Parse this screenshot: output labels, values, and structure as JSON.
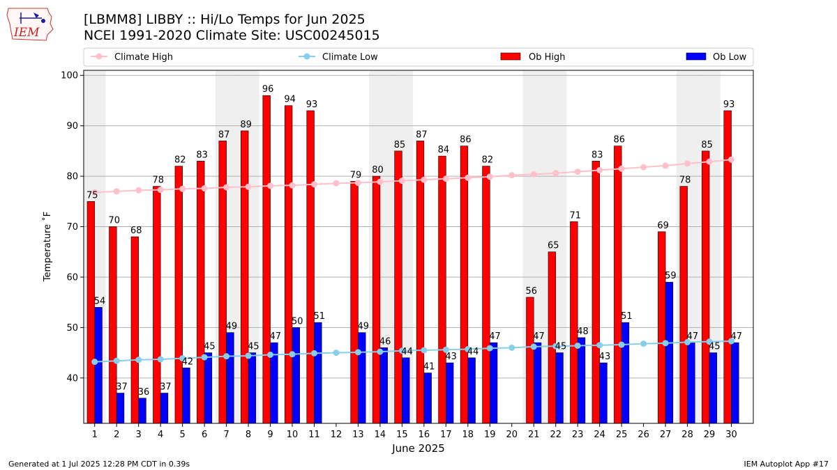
{
  "header": {
    "title_line1": "[LBMM8] LIBBY :: Hi/Lo Temps for Jun 2025",
    "title_line2": "NCEI 1991-2020 Climate Site: USC00245015",
    "logo_text": "IEM"
  },
  "footer": {
    "generated": "Generated at 1 Jul 2025 12:28 PM CDT in 0.39s",
    "app": "IEM Autoplot App #17"
  },
  "colors": {
    "ob_high": "#ff0000",
    "ob_low": "#0000ff",
    "climate_high": "#ffc0cb",
    "climate_low": "#87ceeb",
    "weekend_band": "#efefef",
    "grid": "#b0b0b0"
  },
  "chart_data": {
    "type": "bar",
    "xlabel": "June 2025",
    "ylabel": "Temperature ˚F",
    "ylim": [
      31,
      101
    ],
    "yticks": [
      40,
      50,
      60,
      70,
      80,
      90,
      100
    ],
    "grid": "horizontal",
    "legend_placement": "top",
    "categories": [
      "1",
      "2",
      "3",
      "4",
      "5",
      "6",
      "7",
      "8",
      "9",
      "10",
      "11",
      "12",
      "13",
      "14",
      "15",
      "16",
      "17",
      "18",
      "19",
      "20",
      "21",
      "22",
      "23",
      "24",
      "25",
      "26",
      "27",
      "28",
      "29",
      "30"
    ],
    "weekend_days": [
      1,
      7,
      8,
      14,
      15,
      21,
      22,
      28,
      29
    ],
    "series": [
      {
        "name": "Ob High",
        "kind": "bar",
        "values": [
          75,
          70,
          68,
          78,
          82,
          83,
          87,
          89,
          96,
          94,
          93,
          null,
          79,
          80,
          85,
          87,
          84,
          86,
          82,
          null,
          56,
          65,
          71,
          83,
          86,
          null,
          69,
          78,
          85,
          93
        ]
      },
      {
        "name": "Ob Low",
        "kind": "bar",
        "values": [
          54,
          37,
          36,
          37,
          42,
          45,
          49,
          45,
          47,
          50,
          51,
          null,
          49,
          46,
          44,
          41,
          43,
          44,
          47,
          null,
          47,
          45,
          48,
          43,
          51,
          null,
          59,
          47,
          45,
          47
        ]
      },
      {
        "name": "Climate High",
        "kind": "line",
        "values": [
          76.8,
          77.0,
          77.2,
          77.3,
          77.5,
          77.6,
          77.8,
          77.9,
          78.1,
          78.2,
          78.4,
          78.6,
          78.7,
          78.9,
          79.1,
          79.3,
          79.5,
          79.7,
          79.9,
          80.2,
          80.4,
          80.6,
          80.9,
          81.2,
          81.5,
          81.8,
          82.1,
          82.5,
          82.9,
          83.3
        ]
      },
      {
        "name": "Climate Low",
        "kind": "line",
        "values": [
          43.2,
          43.4,
          43.6,
          43.7,
          43.9,
          44.1,
          44.3,
          44.4,
          44.6,
          44.7,
          44.9,
          45.0,
          45.1,
          45.2,
          45.4,
          45.5,
          45.6,
          45.7,
          45.9,
          46.0,
          46.2,
          46.3,
          46.4,
          46.5,
          46.6,
          46.8,
          46.9,
          47.1,
          47.2,
          47.3
        ]
      }
    ]
  }
}
